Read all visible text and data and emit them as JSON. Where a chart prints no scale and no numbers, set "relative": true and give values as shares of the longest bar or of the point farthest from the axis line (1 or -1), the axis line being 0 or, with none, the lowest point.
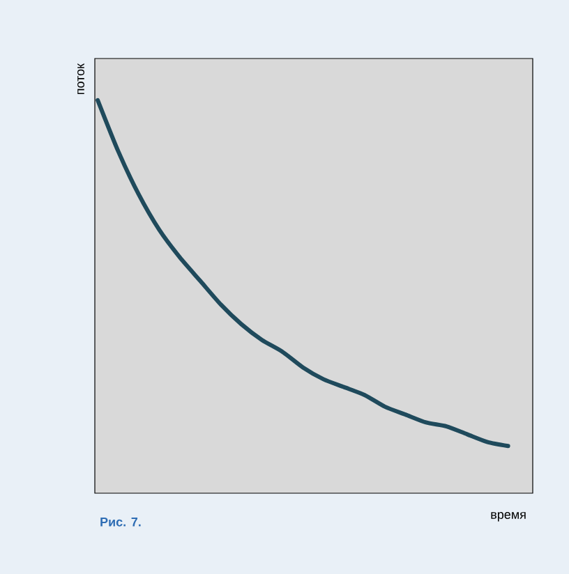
{
  "chart_data": {
    "type": "line",
    "relative": true,
    "xlabel": "время",
    "ylabel": "поток",
    "annotations": [
      "**Рис. 7.**"
    ],
    "categories": [
      null,
      null,
      null,
      null,
      null,
      null,
      null,
      null,
      null,
      null,
      null,
      null,
      null,
      null,
      null,
      null,
      null,
      null,
      null,
      null,
      null
    ],
    "color": "#1f4a5c",
    "values": [
      1.0,
      0.87,
      0.76,
      0.67,
      0.6,
      0.54,
      0.48,
      0.43,
      0.39,
      0.36,
      0.32,
      0.29,
      0.27,
      0.25,
      0.22,
      0.2,
      0.18,
      0.17,
      0.15,
      0.13,
      0.12
    ]
  }
}
